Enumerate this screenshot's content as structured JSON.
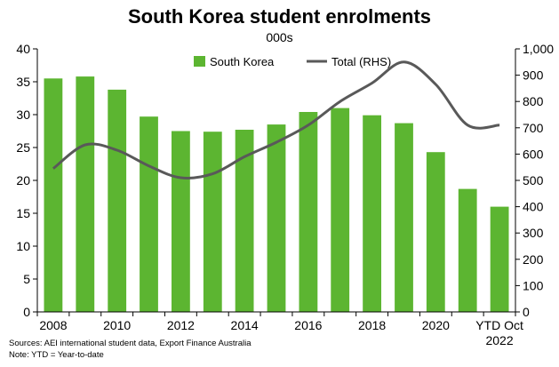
{
  "chart_data": {
    "type": "bar+line",
    "title": "South Korea student enrolments",
    "subtitle": "000s",
    "categories": [
      "2008",
      "2009",
      "2010",
      "2011",
      "2012",
      "2013",
      "2014",
      "2015",
      "2016",
      "2017",
      "2018",
      "2019",
      "2020",
      "2021",
      "YTD Oct 2022"
    ],
    "x_tick_labels": [
      "2008",
      "2010",
      "2012",
      "2014",
      "2016",
      "2018",
      "2020",
      "YTD Oct 2022"
    ],
    "series": [
      {
        "name": "South Korea",
        "type": "bar",
        "axis": "left",
        "color": "#5cb531",
        "values": [
          35.5,
          35.8,
          33.8,
          29.7,
          27.5,
          27.4,
          27.7,
          28.5,
          30.4,
          31.0,
          29.9,
          28.7,
          24.3,
          18.7,
          16.0
        ]
      },
      {
        "name": "Total (RHS)",
        "type": "line",
        "axis": "right",
        "color": "#595959",
        "values": [
          545,
          635,
          615,
          555,
          510,
          525,
          590,
          645,
          710,
          800,
          870,
          950,
          865,
          710,
          710
        ]
      }
    ],
    "y_left": {
      "min": 0,
      "max": 40,
      "step": 5,
      "ticks": [
        "0",
        "5",
        "10",
        "15",
        "20",
        "25",
        "30",
        "35",
        "40"
      ]
    },
    "y_right": {
      "min": 0,
      "max": 1000,
      "step": 100,
      "ticks": [
        "0",
        "100",
        "200",
        "300",
        "400",
        "500",
        "600",
        "700",
        "800",
        "900",
        "1,000"
      ]
    },
    "legend": {
      "placement": "top-center"
    },
    "grid": false
  },
  "footer": {
    "source": "Sources: AEI international student data, Export Finance Australia",
    "note": "Note: YTD = Year-to-date"
  }
}
